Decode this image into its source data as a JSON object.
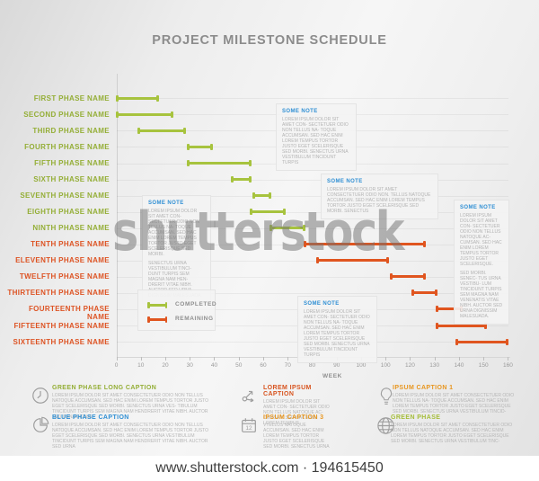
{
  "title": "PROJECT MILESTONE SCHEDULE",
  "watermark_text": "shutterstock",
  "footer": {
    "text": "www.shutterstock.com · 194615450"
  },
  "chart_data": {
    "type": "gantt",
    "title": "PROJECT MILESTONE SCHEDULE",
    "xlabel": "WEEK",
    "xlim": [
      0,
      160
    ],
    "x_tick_labels": [
      "0",
      "10",
      "20",
      "30",
      "40",
      "50",
      "60",
      "70",
      "80",
      "90",
      "100",
      "100",
      "120",
      "130",
      "140",
      "150",
      "160"
    ],
    "grid": true,
    "legend_position": "lower-left",
    "legend": [
      {
        "label": "COMPLETED",
        "status": "completed",
        "color": "#a7c33e"
      },
      {
        "label": "REMAINING",
        "status": "remaining",
        "color": "#e0551f"
      }
    ],
    "phases": [
      {
        "name": "FIRST PHASE NAME",
        "start": 0,
        "end": 17,
        "status": "completed"
      },
      {
        "name": "SECOND PHASE NAME",
        "start": 0,
        "end": 23,
        "status": "completed"
      },
      {
        "name": "THIRD PHASE NAME",
        "start": 9,
        "end": 28,
        "status": "completed"
      },
      {
        "name": "FOURTH PHASE NAME",
        "start": 29,
        "end": 39,
        "status": "completed"
      },
      {
        "name": "FIFTH PHASE NAME",
        "start": 29,
        "end": 55,
        "status": "completed"
      },
      {
        "name": "SIXTH PHASE NAME",
        "start": 47,
        "end": 55,
        "status": "completed"
      },
      {
        "name": "SEVENTH PHASE NAME",
        "start": 56,
        "end": 63,
        "status": "completed"
      },
      {
        "name": "EIGHTH PHASE NAME",
        "start": 55,
        "end": 69,
        "status": "completed"
      },
      {
        "name": "NINTH PHASE NAME",
        "start": 63,
        "end": 77,
        "status": "completed"
      },
      {
        "name": "TENTH PHASE NAME",
        "start": 77,
        "end": 126,
        "status": "remaining"
      },
      {
        "name": "ELEVENTH PHASE NAME",
        "start": 82,
        "end": 111,
        "status": "remaining"
      },
      {
        "name": "TWELFTH PHASE NAME",
        "start": 112,
        "end": 126,
        "status": "remaining"
      },
      {
        "name": "THIRTEENTH PHASE NAME",
        "start": 121,
        "end": 131,
        "status": "remaining"
      },
      {
        "name": "FOURTEENTH PHASE NAME",
        "start": 131,
        "end": 141,
        "status": "remaining"
      },
      {
        "name": "FIFTEENTH PHASE NAME",
        "start": 131,
        "end": 151,
        "status": "remaining"
      },
      {
        "name": "SIXTEENTH PHASE NAME",
        "start": 139,
        "end": 160,
        "status": "remaining"
      }
    ]
  },
  "notes": [
    {
      "id": "note-1",
      "header": "SOME NOTE",
      "paragraphs": [
        "LOREM IPSUM DOLOR SIT AMET CON- SECTETUER ODIO NON TELLUS NA- TOQUE ACCUMSAN. SED HAC ENIM LOREM TEMPUS TORTOR JUSTO EGET SCELERISQUE SED MORBI. SENECTUS URNA VESTIBULUM TINCIDUNT TURPIS"
      ]
    },
    {
      "id": "note-2",
      "header": "SOME NOTE",
      "paragraphs": [
        "LOREM IPSUM DOLOR SIT AMET CONSECTETUER ODIO NON. TELLUS NATOQUE ACCUMSAN. SED HAC ENIM LOREM TEMPUS TORTOR JUSTO EGET SCELERISQUE SED MORBI. SENECTUS"
      ]
    },
    {
      "id": "note-3",
      "header": "SOME NOTE",
      "paragraphs": [
        "LOREM IPSUM DOLOR SIT AMET CON- SECTETUER ODIO NON TELLUS NA- TOQUE ACCUMSAN. SED HAC ENIM LOREM TEMPUS TORTOR JUSTO EGET SCELERISQUE SED MORBI.",
        "SENECTUS URNA VESTIBULUM TINCI- DUNT TURPIS SEM MAGNA NAM HEN- DRERIT VITAE NIBH. AUCTOR SED URNA DIGNISSIM MALESUADA."
      ]
    },
    {
      "id": "note-4",
      "header": "SOME NOTE",
      "paragraphs": [
        "LOREM IPSUM DOLOR SIT AMET CON- SECTETUER ODIO NON TELLUS NATOQUE AC- CUMSAN. SED HAC ENIM LOREM TEMPUS TORTOR JUSTO EGET SCELERISQUE.",
        "SED MORBI. SENEC- TUS URNA VESTIBU- LUM TINCIDUNT TURPIS SEM MAGNA NAM VENENATIS VITAE NIBH. AUCTOR SED URNA DIGNISSIM MALESUADA."
      ]
    },
    {
      "id": "note-5",
      "header": "SOME NOTE",
      "paragraphs": [
        "LOREM IPSUM DOLOR SIT AMET CON- SECTETUER ODIO NON TELLUS NA- TOQUE ACCUMSAN. SED HAC ENIM LOREM TEMPUS TORTOR JUSTO EGET SCELERISQUE SED MORBI. SENECTUS URNA VESTIBULUM TINCIDUNT TURPIS"
      ]
    }
  ],
  "captions": [
    {
      "icon": "clock-icon",
      "title": "GREEN PHASE LONG CAPTION",
      "color": "#94ae36",
      "text": "LOREM IPSUM DOLOR SIT AMET CONSECTETUER ODIO NON TELLUS NATOQUE ACCUMSAN. SED HAC ENIM LOREM TEMPUS TORTOR JUSTO EGET SCELERISQUE SED MORBI. SENECTUS URNA VES- TIBULUM TINCIDUNT TURPIS SEM MAGNA NAM HENDRERIT VITAE NIBH. AUCTOR SED URNA DIGNIS"
    },
    {
      "icon": "pie-chart-icon",
      "title": "BLUE PHASE CAPTION",
      "color": "#2f8fd4",
      "text": "LOREM IPSUM DOLOR SIT AMET CONSECTETUER ODIO NON TELLUS NATOQUE ACCUMSAN. SED HAC ENIM LOREM TEMPUS TORTOR JUSTO EGET SCELERISQUE SED MORBI. SENECTUS URNA VESTIBULUM TINCIDUNT TURPIS SEM MAGNA NAM HENDRERIT VITAE NIBH. AUCTOR SED URNA"
    },
    {
      "icon": "share-arrows-icon",
      "title": "LOREM IPSUM CAPTION",
      "color": "#d8541f",
      "text": "LOREM IPSUM DOLOR SIT AMET CON- SECTETUER ODIO NON TELLUS NATOQUE AC- CUMSAN. SED HAC ENIM LOREM TEMPUS"
    },
    {
      "icon": "calendar-icon",
      "icon_text": "12",
      "title": "IPSUM CAPTION 3",
      "color": "#e8961f",
      "text": "VTELLUS NATOQUE ACCUMSAN. SED HAC ENIM LOREM TEMPUS TORTOR JUSTO EGET SCELERISQUE SED MORBI. SENECTUS URNA"
    },
    {
      "icon": "light-bulb-icon",
      "title": "IPSUM CAPTION 1",
      "color": "#e8961f",
      "text": "LOREM IPSUM DOLOR SIT AMET CONSECTETUER ODIO NON TELLUS NA- TOQUE ACCUMSAN. SED HAC ENIM LOREM TEMPUS TORTOR JUSTO EGET SCELERISQUE SED MORBI. SENECTUS URNA VESTIBULUM TINCID-"
    },
    {
      "icon": "globe-icon",
      "title": "GREEN PHASE",
      "color": "#a5bd3a",
      "text": "LOREM IPSUM DOLOR SIT AMET CONSECTETUER ODIO NON TELLUS NATOQUE ACCUMSAN. SED HAC ENIM LOREM TEMPUS TORTOR JUSTO EGET SCELERISQUE SED MORBI. SENECTUS URNA VESTIBULUM TINC-"
    }
  ],
  "colors": {
    "completed": "#a7c33e",
    "remaining": "#e0551f",
    "note_header": "#2f8fd4",
    "title": "#8c8c8c",
    "axis_text": "#9a9a9a"
  }
}
